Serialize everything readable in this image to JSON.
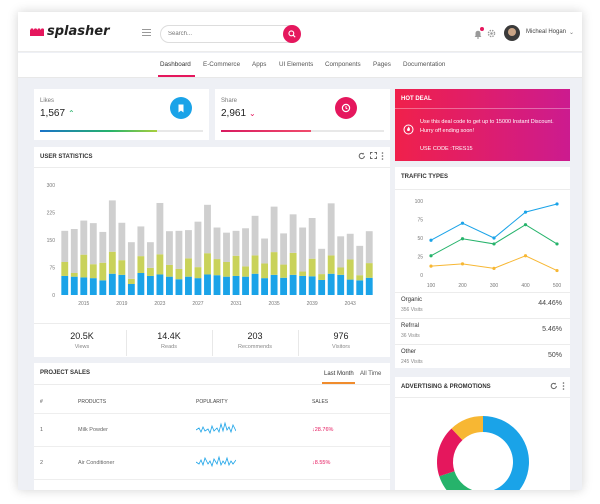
{
  "app": {
    "name": "splasher"
  },
  "topbar": {
    "search_placeholder": "Search...",
    "user_name": "Micheal Hogan",
    "caret": "⌄"
  },
  "nav": {
    "items": [
      "Dashboard",
      "E-Commerce",
      "Apps",
      "UI Elements",
      "Components",
      "Pages",
      "Documentation"
    ],
    "active": "Dashboard"
  },
  "stats": {
    "likes": {
      "label": "Likes",
      "value": "1,567",
      "progress": 0.72,
      "color": "#1a73c9"
    },
    "share": {
      "label": "Share",
      "value": "2,961",
      "progress": 0.55,
      "color": "#e5175d"
    }
  },
  "hot_deal": {
    "title": "HOT DEAL",
    "text": "Use this deal code to get up to 15000 Instant Discount. Hurry off ending soon!",
    "code": "USE CODE :TRES15"
  },
  "user_statistics": {
    "title": "USER STATISTICS",
    "metrics": [
      {
        "value": "20.5K",
        "label": "Views"
      },
      {
        "value": "14.4K",
        "label": "Reads"
      },
      {
        "value": "203",
        "label": "Recommends"
      },
      {
        "value": "976",
        "label": "Visitors"
      }
    ]
  },
  "project_sales": {
    "title": "PROJECT SALES",
    "tabs": [
      "Last Month",
      "All Time"
    ],
    "columns": [
      "#",
      "PRODUCTS",
      "POPULARITY",
      "SALES"
    ],
    "rows": [
      {
        "num": "1",
        "product": "Milk Powder",
        "sales": "28.76%"
      },
      {
        "num": "2",
        "product": "Air Conditioner",
        "sales": "8.55%"
      }
    ]
  },
  "traffic_types": {
    "title": "TRAFFIC TYPES",
    "rows": [
      {
        "name": "Organic",
        "visits": "356 Visits",
        "percent": "44.46%"
      },
      {
        "name": "Refrral",
        "visits": "36 Visits",
        "percent": "5.46%"
      },
      {
        "name": "Other",
        "visits": "245 Visits",
        "percent": "50%"
      }
    ]
  },
  "advertising": {
    "title": "ADVERTISING & PROMOTIONS"
  },
  "colors": {
    "accent": "#e5175d",
    "blue": "#1aa3e8",
    "green": "#26b36b",
    "yellow": "#f7b733",
    "olive": "#c9d25a",
    "grey": "#cfcfcf",
    "orange": "#f08c2d"
  },
  "chart_data": [
    {
      "type": "bar",
      "title": "USER STATISTICS",
      "stacked": true,
      "ylim": [
        0,
        300
      ],
      "yticks": [
        0,
        75,
        150,
        225,
        300
      ],
      "xticks": [
        "2015",
        "2019",
        "2023",
        "2027",
        "2031",
        "2035",
        "2039",
        "2043"
      ],
      "categories": [
        "2013",
        "2014",
        "2015",
        "2016",
        "2017",
        "2018",
        "2019",
        "2020",
        "2021",
        "2022",
        "2023",
        "2024",
        "2025",
        "2026",
        "2027",
        "2028",
        "2029",
        "2030",
        "2031",
        "2032",
        "2033",
        "2034",
        "2035",
        "2036",
        "2037",
        "2038",
        "2039",
        "2040",
        "2041",
        "2042",
        "2043",
        "2044",
        "2045"
      ],
      "series": [
        {
          "values": [
            52,
            50,
            48,
            46,
            40,
            58,
            55,
            30,
            60,
            52,
            56,
            50,
            43,
            50,
            46,
            56,
            54,
            50,
            52,
            50,
            58,
            46,
            55,
            47,
            55,
            52,
            51,
            41,
            58,
            55,
            42,
            40,
            47
          ]
        },
        {
          "values": [
            38,
            10,
            62,
            38,
            48,
            60,
            40,
            14,
            46,
            22,
            55,
            32,
            28,
            50,
            30,
            58,
            44,
            40,
            55,
            28,
            50,
            40,
            62,
            36,
            60,
            12,
            48,
            16,
            50,
            20,
            55,
            14,
            40
          ]
        },
        {
          "values": [
            85,
            120,
            93,
            112,
            84,
            140,
            102,
            100,
            81,
            70,
            140,
            92,
            104,
            77,
            124,
            132,
            86,
            80,
            68,
            104,
            108,
            68,
            124,
            85,
            105,
            120,
            111,
            69,
            142,
            85,
            70,
            80,
            87
          ]
        }
      ]
    },
    {
      "type": "line",
      "title": "TRAFFIC TYPES",
      "x": [
        100,
        200,
        300,
        400,
        500
      ],
      "ylim": [
        0,
        100
      ],
      "yticks": [
        0,
        25,
        50,
        75,
        100
      ],
      "series": [
        {
          "values": [
            47,
            70,
            50,
            85,
            96
          ],
          "color": "#1aa3e8"
        },
        {
          "values": [
            26,
            49,
            42,
            68,
            42
          ],
          "color": "#26b36b"
        },
        {
          "values": [
            12,
            15,
            9,
            26,
            6
          ],
          "color": "#f7b733"
        }
      ]
    },
    {
      "type": "pie",
      "title": "ADVERTISING & PROMOTIONS",
      "slices": [
        {
          "value": 52,
          "color": "#1aa3e8"
        },
        {
          "value": 18,
          "color": "#26b36b"
        },
        {
          "value": 18,
          "color": "#e5175d"
        },
        {
          "value": 12,
          "color": "#f7b733"
        }
      ]
    }
  ]
}
